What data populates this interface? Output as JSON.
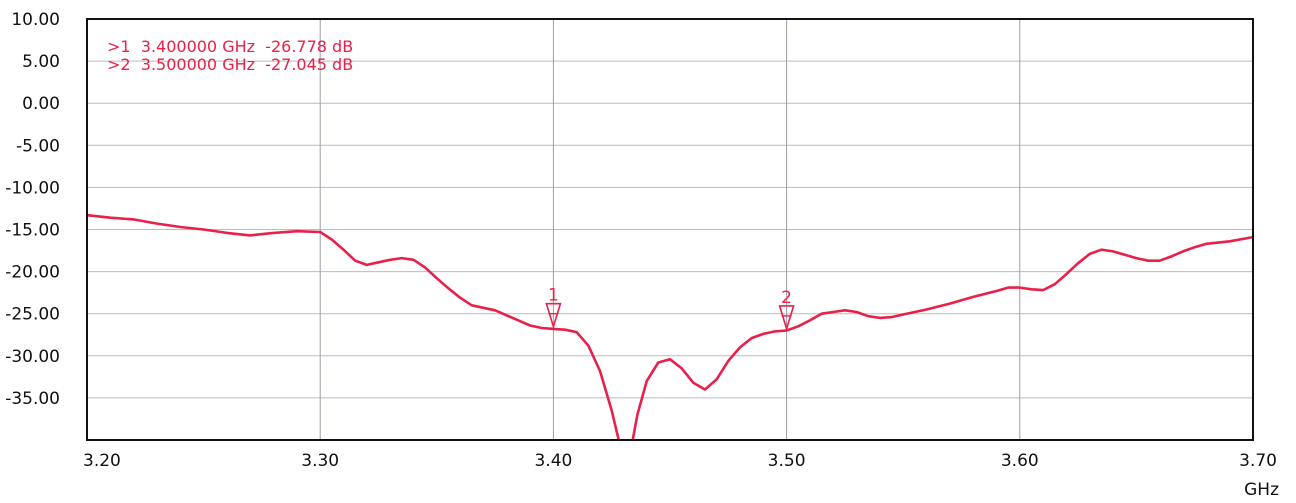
{
  "chart_data": {
    "type": "line",
    "xlabel": "GHz",
    "ylabel": "",
    "xlim": [
      3.2,
      3.7
    ],
    "ylim": [
      -40,
      10
    ],
    "x_ticks": [
      "3.20",
      "3.30",
      "3.40",
      "3.50",
      "3.60",
      "3.70"
    ],
    "x_tick_values": [
      3.2,
      3.3,
      3.4,
      3.5,
      3.6,
      3.7
    ],
    "y_ticks": [
      "10.00",
      "5.00",
      "0.00",
      "-5.00",
      "-10.00",
      "-15.00",
      "-20.00",
      "-25.00",
      "-30.00",
      "-35.00"
    ],
    "y_tick_values": [
      10,
      5,
      0,
      -5,
      -10,
      -15,
      -20,
      -25,
      -30,
      -35
    ],
    "grid": true,
    "series": [
      {
        "color": "#e8204a",
        "x": [
          3.2,
          3.21,
          3.22,
          3.23,
          3.24,
          3.25,
          3.26,
          3.27,
          3.28,
          3.29,
          3.3,
          3.305,
          3.31,
          3.315,
          3.32,
          3.325,
          3.33,
          3.335,
          3.34,
          3.345,
          3.35,
          3.355,
          3.36,
          3.365,
          3.37,
          3.375,
          3.38,
          3.385,
          3.39,
          3.395,
          3.4,
          3.405,
          3.41,
          3.415,
          3.42,
          3.425,
          3.428,
          3.43,
          3.432,
          3.434,
          3.436,
          3.44,
          3.445,
          3.45,
          3.455,
          3.46,
          3.465,
          3.47,
          3.475,
          3.48,
          3.485,
          3.49,
          3.495,
          3.5,
          3.505,
          3.51,
          3.515,
          3.52,
          3.525,
          3.53,
          3.535,
          3.54,
          3.545,
          3.55,
          3.56,
          3.57,
          3.58,
          3.59,
          3.595,
          3.6,
          3.605,
          3.61,
          3.615,
          3.62,
          3.625,
          3.63,
          3.635,
          3.64,
          3.645,
          3.65,
          3.655,
          3.66,
          3.665,
          3.67,
          3.675,
          3.68,
          3.69,
          3.7
        ],
        "values": [
          -13.3,
          -13.6,
          -13.8,
          -14.3,
          -14.7,
          -15.0,
          -15.4,
          -15.7,
          -15.4,
          -15.2,
          -15.3,
          -16.2,
          -17.4,
          -18.7,
          -19.2,
          -18.9,
          -18.6,
          -18.4,
          -18.6,
          -19.5,
          -20.8,
          -22.0,
          -23.1,
          -24.0,
          -24.3,
          -24.6,
          -25.2,
          -25.8,
          -26.4,
          -26.7,
          -26.8,
          -26.9,
          -27.2,
          -28.8,
          -31.8,
          -36.5,
          -40.0,
          -41.0,
          -41.0,
          -40.0,
          -37.0,
          -33.0,
          -30.8,
          -30.4,
          -31.5,
          -33.2,
          -34.0,
          -32.8,
          -30.6,
          -29.0,
          -27.9,
          -27.4,
          -27.1,
          -27.0,
          -26.5,
          -25.8,
          -25.0,
          -24.8,
          -24.6,
          -24.8,
          -25.3,
          -25.5,
          -25.4,
          -25.1,
          -24.5,
          -23.8,
          -23.0,
          -22.3,
          -21.9,
          -21.9,
          -22.1,
          -22.2,
          -21.5,
          -20.3,
          -19.0,
          -17.9,
          -17.4,
          -17.6,
          -18.0,
          -18.4,
          -18.7,
          -18.7,
          -18.2,
          -17.6,
          -17.1,
          -16.7,
          -16.4,
          -15.9
        ]
      }
    ],
    "markers": [
      {
        "label": "1",
        "x": 3.4,
        "y": -26.778,
        "readout": ">1  3.400000 GHz  -26.778 dB"
      },
      {
        "label": "2",
        "x": 3.5,
        "y": -27.045,
        "readout": ">2  3.500000 GHz  -27.045 dB"
      }
    ]
  }
}
